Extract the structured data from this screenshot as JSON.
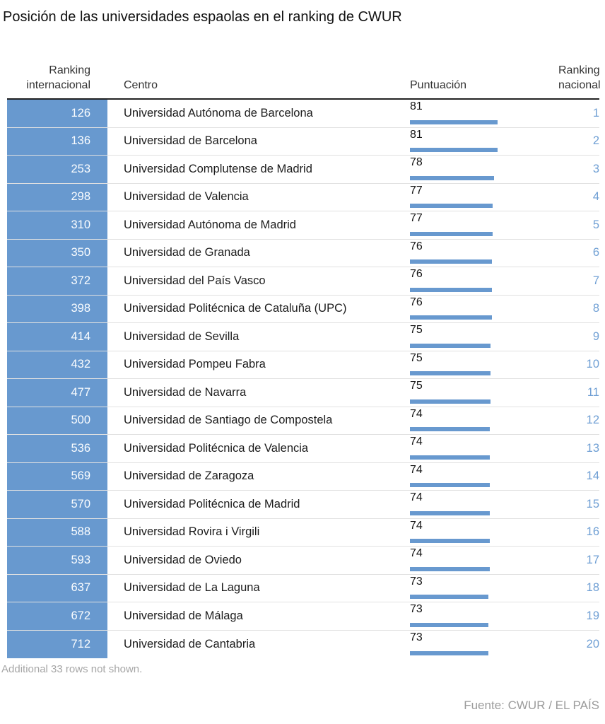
{
  "title": "Posición de las universidades espaolas en el ranking de CWUR",
  "colors": {
    "accent_blue": "#6899cf",
    "national_rank_blue": "#6f9fd4",
    "header_rule": "#222222",
    "muted_gray": "#a6a6a6"
  },
  "table": {
    "headers": {
      "international": "Ranking internacional",
      "center": "Centro",
      "score": "Puntuación",
      "national": "Ranking nacional"
    },
    "rows": [
      {
        "international": "126",
        "center": "Universidad Autónoma de Barcelona",
        "score": 81,
        "national": "1"
      },
      {
        "international": "136",
        "center": "Universidad de Barcelona",
        "score": 81,
        "national": "2"
      },
      {
        "international": "253",
        "center": "Universidad Complutense de Madrid",
        "score": 78,
        "national": "3"
      },
      {
        "international": "298",
        "center": "Universidad de Valencia",
        "score": 77,
        "national": "4"
      },
      {
        "international": "310",
        "center": "Universidad Autónoma de Madrid",
        "score": 77,
        "national": "5"
      },
      {
        "international": "350",
        "center": "Universidad de Granada",
        "score": 76,
        "national": "6"
      },
      {
        "international": "372",
        "center": "Universidad del País Vasco",
        "score": 76,
        "national": "7"
      },
      {
        "international": "398",
        "center": "Universidad Politécnica de Cataluña (UPC)",
        "score": 76,
        "national": "8"
      },
      {
        "international": "414",
        "center": "Universidad de Sevilla",
        "score": 75,
        "national": "9"
      },
      {
        "international": "432",
        "center": "Universidad Pompeu Fabra",
        "score": 75,
        "national": "10"
      },
      {
        "international": "477",
        "center": "Universidad de Navarra",
        "score": 75,
        "national": "11"
      },
      {
        "international": "500",
        "center": "Universidad de Santiago de Compostela",
        "score": 74,
        "national": "12"
      },
      {
        "international": "536",
        "center": "Universidad Politécnica de Valencia",
        "score": 74,
        "national": "13"
      },
      {
        "international": "569",
        "center": "Universidad de Zaragoza",
        "score": 74,
        "national": "14"
      },
      {
        "international": "570",
        "center": "Universidad Politécnica de Madrid",
        "score": 74,
        "national": "15"
      },
      {
        "international": "588",
        "center": "Universidad Rovira i Virgili",
        "score": 74,
        "national": "16"
      },
      {
        "international": "593",
        "center": "Universidad de Oviedo",
        "score": 74,
        "national": "17"
      },
      {
        "international": "637",
        "center": "Universidad de La Laguna",
        "score": 73,
        "national": "18"
      },
      {
        "international": "672",
        "center": "Universidad de Málaga",
        "score": 73,
        "national": "19"
      },
      {
        "international": "712",
        "center": "Universidad de Cantabria",
        "score": 73,
        "national": "20"
      }
    ]
  },
  "footnote": "Additional 33 rows not shown.",
  "source": "Fuente: CWUR / EL PAÍS",
  "chart_data": {
    "type": "table",
    "title": "Posición de las universidades espaolas en el ranking de CWUR",
    "columns": [
      "Ranking internacional",
      "Centro",
      "Puntuación",
      "Ranking nacional"
    ],
    "bar_column": "Puntuación",
    "bar_value_range": [
      0,
      81
    ],
    "categories": [
      "Universidad Autónoma de Barcelona",
      "Universidad de Barcelona",
      "Universidad Complutense de Madrid",
      "Universidad de Valencia",
      "Universidad Autónoma de Madrid",
      "Universidad de Granada",
      "Universidad del País Vasco",
      "Universidad Politécnica de Cataluña (UPC)",
      "Universidad de Sevilla",
      "Universidad Pompeu Fabra",
      "Universidad de Navarra",
      "Universidad de Santiago de Compostela",
      "Universidad Politécnica de Valencia",
      "Universidad de Zaragoza",
      "Universidad Politécnica de Madrid",
      "Universidad Rovira i Virgili",
      "Universidad de Oviedo",
      "Universidad de La Laguna",
      "Universidad de Málaga",
      "Universidad de Cantabria"
    ],
    "series": [
      {
        "name": "Ranking internacional",
        "values": [
          126,
          136,
          253,
          298,
          310,
          350,
          372,
          398,
          414,
          432,
          477,
          500,
          536,
          569,
          570,
          588,
          593,
          637,
          672,
          712
        ]
      },
      {
        "name": "Puntuación",
        "values": [
          81,
          81,
          78,
          77,
          77,
          76,
          76,
          76,
          75,
          75,
          75,
          74,
          74,
          74,
          74,
          74,
          74,
          73,
          73,
          73
        ]
      },
      {
        "name": "Ranking nacional",
        "values": [
          1,
          2,
          3,
          4,
          5,
          6,
          7,
          8,
          9,
          10,
          11,
          12,
          13,
          14,
          15,
          16,
          17,
          18,
          19,
          20
        ]
      }
    ],
    "annotations": [
      "Additional 33 rows not shown.",
      "Fuente: CWUR / EL PAÍS"
    ]
  }
}
